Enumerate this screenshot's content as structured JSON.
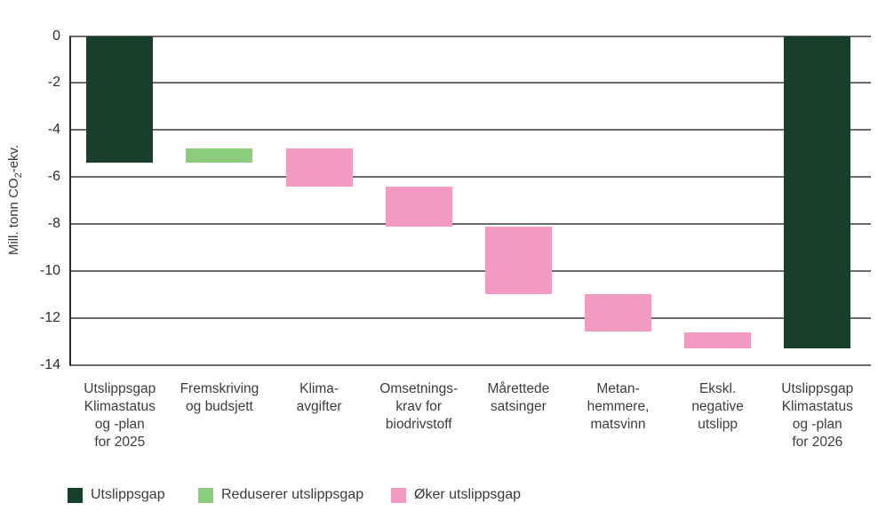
{
  "chart_data": {
    "type": "bar",
    "subtype": "waterfall",
    "ylabel": "Mill. tonn CO₂-ekv.",
    "ylabel_parts": {
      "pre": "Mill. tonn CO",
      "sub": "2",
      "post": "-ekv."
    },
    "ylim": [
      -14,
      0
    ],
    "yticks": [
      0,
      -2,
      -4,
      -6,
      -8,
      -10,
      -12,
      -14
    ],
    "grid": true,
    "legend_position": "bottom",
    "colors": {
      "total": "#16402a",
      "reduce": "#8ccd7d",
      "increase": "#f49bc3"
    },
    "bars": [
      {
        "category_lines": [
          "Utslippsgap",
          "Klimastatus",
          "og -plan",
          "for 2025"
        ],
        "from": 0,
        "to": -5.4,
        "role": "total"
      },
      {
        "category_lines": [
          "Fremskriving",
          "og budsjett"
        ],
        "from": -5.4,
        "to": -4.8,
        "role": "reduce"
      },
      {
        "category_lines": [
          "Klima-",
          "avgifter"
        ],
        "from": -4.8,
        "to": -6.4,
        "role": "increase"
      },
      {
        "category_lines": [
          "Omsetnings-",
          "krav for",
          "biodrivstoff"
        ],
        "from": -6.4,
        "to": -8.1,
        "role": "increase"
      },
      {
        "category_lines": [
          "Mårettede",
          "satsinger"
        ],
        "from": -8.1,
        "to": -11.0,
        "role": "increase"
      },
      {
        "category_lines": [
          "Metan-",
          "hemmere,",
          "matsvinn"
        ],
        "from": -11.0,
        "to": -12.6,
        "role": "increase"
      },
      {
        "category_lines": [
          "Ekskl.",
          "negative",
          "utslipp"
        ],
        "from": -12.6,
        "to": -13.3,
        "role": "increase"
      },
      {
        "category_lines": [
          "Utslippsgap",
          "Klimastatus",
          "og -plan",
          "for 2026"
        ],
        "from": 0,
        "to": -13.3,
        "role": "total"
      }
    ],
    "legend": [
      {
        "label": "Utslippsgap",
        "role": "total"
      },
      {
        "label": "Reduserer utslippsgap",
        "role": "reduce"
      },
      {
        "label": "Øker utslippsgap",
        "role": "increase"
      }
    ]
  }
}
